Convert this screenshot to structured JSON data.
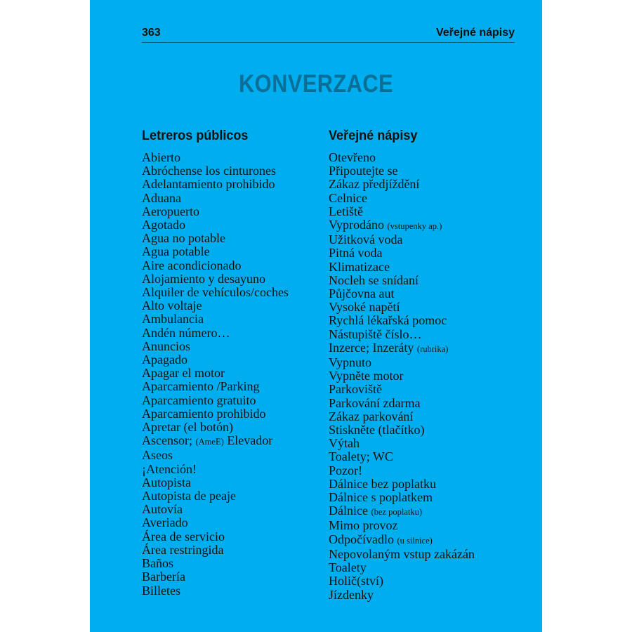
{
  "colors": {
    "page_bg": "#00aeef",
    "title": "#0a6e96",
    "text": "#111111"
  },
  "header": {
    "page_number": "363",
    "section": "Veřejné nápisy"
  },
  "title": "KONVERZACE",
  "left": {
    "heading": "Letreros públicos",
    "rows": [
      {
        "text": "Abierto"
      },
      {
        "text": "Abróchense los cinturones"
      },
      {
        "text": "Adelantamiento prohibido"
      },
      {
        "text": "Aduana"
      },
      {
        "text": "Aeropuerto"
      },
      {
        "text": "Agotado"
      },
      {
        "text": "Agua no potable"
      },
      {
        "text": "Agua potable"
      },
      {
        "text": "Aire acondicionado"
      },
      {
        "text": "Alojamiento y desayuno"
      },
      {
        "text": "Alquiler de vehículos/coches"
      },
      {
        "text": "Alto voltaje"
      },
      {
        "text": "Ambulancia"
      },
      {
        "text": "Andén número…"
      },
      {
        "text": "Anuncios"
      },
      {
        "text": "Apagado"
      },
      {
        "text": "Apagar el motor"
      },
      {
        "text": "Aparcamiento /Parking"
      },
      {
        "text": "Aparcamiento gratuito"
      },
      {
        "text": "Aparcamiento prohibido"
      },
      {
        "text": "Apretar (el botón)"
      },
      {
        "text": "Ascensor;",
        "note": "(AmeE)",
        "after": "Elevador"
      },
      {
        "text": "Aseos"
      },
      {
        "text": "¡Atención!"
      },
      {
        "text": "Autopista"
      },
      {
        "text": "Autopista de peaje"
      },
      {
        "text": "Autovía"
      },
      {
        "text": "Averiado"
      },
      {
        "text": "Área de servicio"
      },
      {
        "text": "Área restringida"
      },
      {
        "text": "Baños"
      },
      {
        "text": "Barbería"
      },
      {
        "text": "Billetes"
      }
    ]
  },
  "right": {
    "heading": "Veřejné nápisy",
    "rows": [
      {
        "text": "Otevřeno"
      },
      {
        "text": "Připoutejte se"
      },
      {
        "text": "Zákaz předjíždění"
      },
      {
        "text": "Celnice"
      },
      {
        "text": "Letiště"
      },
      {
        "text": "Vyprodáno",
        "note": "(vstupenky ap.)"
      },
      {
        "text": "Užitková voda"
      },
      {
        "text": "Pitná voda"
      },
      {
        "text": "Klimatizace"
      },
      {
        "text": "Nocleh se snídaní"
      },
      {
        "text": "Půjčovna aut"
      },
      {
        "text": "Vysoké napětí"
      },
      {
        "text": "Rychlá lékařská pomoc"
      },
      {
        "text": "Nástupiště číslo…"
      },
      {
        "text": "Inzerce; Inzeráty",
        "note": "(rubrika)"
      },
      {
        "text": "Vypnuto"
      },
      {
        "text": "Vypněte motor"
      },
      {
        "text": "Parkoviště"
      },
      {
        "text": "Parkování zdarma"
      },
      {
        "text": "Zákaz parkování"
      },
      {
        "text": "Stiskněte (tlačítko)"
      },
      {
        "text": "Výtah"
      },
      {
        "text": "Toalety; WC"
      },
      {
        "text": "Pozor!"
      },
      {
        "text": "Dálnice bez poplatku"
      },
      {
        "text": "Dálnice s poplatkem"
      },
      {
        "text": "Dálnice",
        "note": "(bez poplatku)"
      },
      {
        "text": "Mimo provoz"
      },
      {
        "text": "Odpočívadlo",
        "note": "(u silnice)"
      },
      {
        "text": "Nepovolaným vstup zakázán"
      },
      {
        "text": "Toalety"
      },
      {
        "text": "Holič(ství)"
      },
      {
        "text": "Jízdenky"
      }
    ]
  }
}
